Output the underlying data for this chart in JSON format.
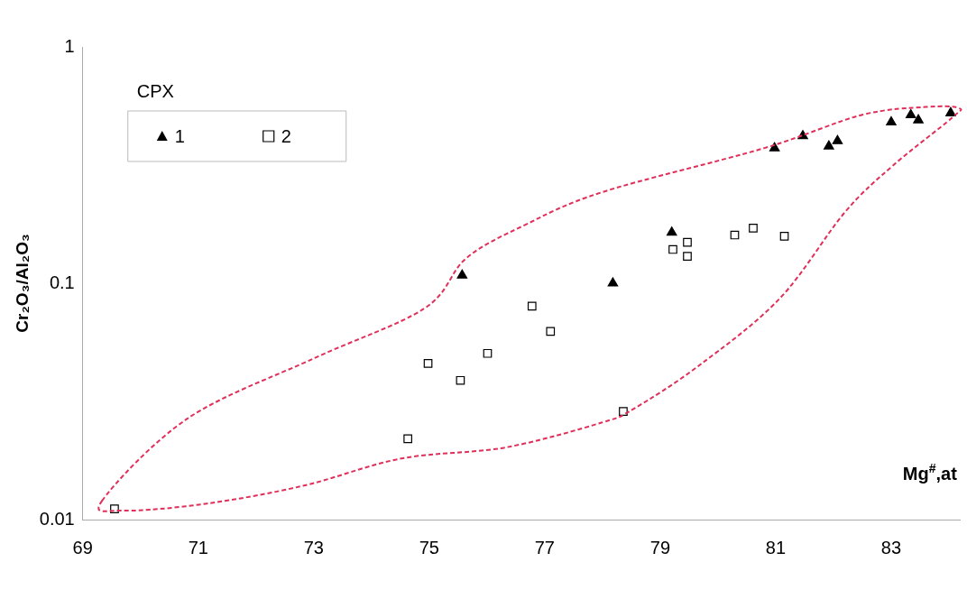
{
  "chart_data": {
    "type": "scatter",
    "xlabel": "Mg$^{#}$,at",
    "ylabel": "Cr₂O₃/Al₂O₃",
    "legend_title": "CPX",
    "xlim": [
      69,
      84.2
    ],
    "xticks": [
      69,
      71,
      73,
      75,
      77,
      79,
      81,
      83
    ],
    "ylim": [
      0.01,
      1
    ],
    "yticks": [
      {
        "value": 0.01,
        "label": "0.01"
      },
      {
        "value": 0.1,
        "label": "0.1"
      },
      {
        "value": 1,
        "label": "1"
      }
    ],
    "log": "y",
    "grid": false,
    "legend": "top left",
    "series": [
      {
        "name": "1",
        "color": "#000000",
        "marker": "triangle",
        "x": [
          75.57,
          78.18,
          79.2,
          80.98,
          81.47,
          81.92,
          82.07,
          83.0,
          83.34,
          83.47,
          84.03
        ],
        "values": [
          0.108,
          0.1,
          0.164,
          0.373,
          0.42,
          0.38,
          0.4,
          0.48,
          0.515,
          0.49,
          0.525
        ]
      },
      {
        "name": "2",
        "color": "#000000",
        "marker": "square",
        "x": [
          69.55,
          74.63,
          74.98,
          75.54,
          76.01,
          76.78,
          77.1,
          78.36,
          79.22,
          79.47,
          79.47,
          80.29,
          80.61,
          81.15
        ],
        "values": [
          0.0111,
          0.022,
          0.0458,
          0.0388,
          0.0505,
          0.08,
          0.0626,
          0.0287,
          0.139,
          0.149,
          0.13,
          0.16,
          0.171,
          0.158
        ]
      }
    ]
  }
}
